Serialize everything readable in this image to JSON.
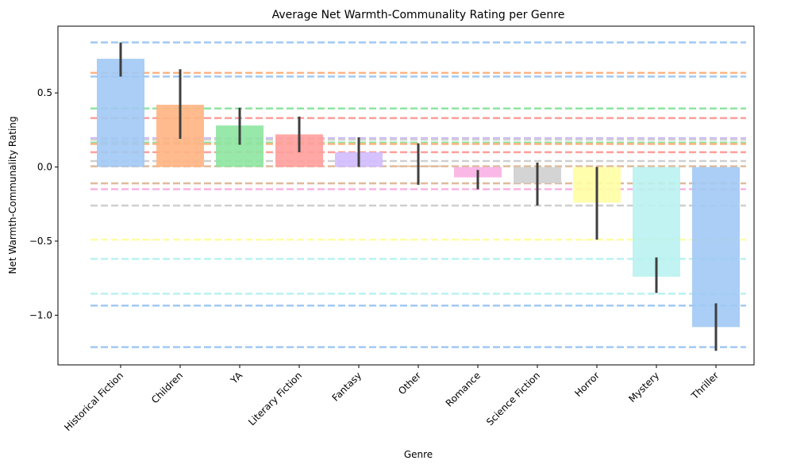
{
  "chart_data": {
    "type": "bar",
    "title": "Average Net Warmth-Communality Rating per Genre",
    "xlabel": "Genre",
    "ylabel": "Net Warmth-Communality Rating",
    "ylim": [
      -1.335,
      0.95
    ],
    "yticks": [
      0.5,
      0.0,
      -0.5,
      -1.0
    ],
    "ytick_labels": [
      "0.5",
      "0.0",
      "−0.5",
      "−1.0"
    ],
    "grid": false,
    "legend": "none",
    "categories": [
      "Historical Fiction",
      "Children",
      "YA",
      "Literary Fiction",
      "Fantasy",
      "Other",
      "Romance",
      "Science Fiction",
      "Horror",
      "Mystery",
      "Thriller"
    ],
    "values": [
      0.73,
      0.42,
      0.28,
      0.22,
      0.1,
      0.01,
      -0.07,
      -0.11,
      -0.24,
      -0.74,
      -1.08
    ],
    "error_low": [
      0.61,
      0.19,
      0.15,
      0.1,
      0.0,
      -0.12,
      -0.15,
      -0.26,
      -0.49,
      -0.85,
      -1.24
    ],
    "error_high": [
      0.84,
      0.66,
      0.4,
      0.34,
      0.2,
      0.16,
      -0.02,
      0.03,
      0.0,
      -0.61,
      -0.92
    ],
    "colors": [
      "#a1c9f4",
      "#ffb482",
      "#8de5a1",
      "#ff9f9b",
      "#d0bbff",
      "#debb9b",
      "#fab0e4",
      "#cfcfcf",
      "#fffea3",
      "#b9f2f0",
      "#a1c9f4"
    ],
    "reference_lines": [
      {
        "y": 0.84,
        "color": "#a1c9f4"
      },
      {
        "y": 0.635,
        "color": "#ffb482"
      },
      {
        "y": 0.61,
        "color": "#a1c9f4"
      },
      {
        "y": 0.395,
        "color": "#8de5a1"
      },
      {
        "y": 0.33,
        "color": "#ff9f9b"
      },
      {
        "y": 0.195,
        "color": "#d0bbff"
      },
      {
        "y": 0.185,
        "color": "#cfcfcf"
      },
      {
        "y": 0.165,
        "color": "#8de5a1"
      },
      {
        "y": 0.155,
        "color": "#ffb482"
      },
      {
        "y": 0.1,
        "color": "#ff9f9b"
      },
      {
        "y": 0.04,
        "color": "#cfcfcf"
      },
      {
        "y": 0.005,
        "color": "#debb9b"
      },
      {
        "y": -0.11,
        "color": "#debb9b"
      },
      {
        "y": -0.15,
        "color": "#fab0e4"
      },
      {
        "y": -0.26,
        "color": "#cfcfcf"
      },
      {
        "y": -0.49,
        "color": "#fffea3"
      },
      {
        "y": -0.62,
        "color": "#b9f2f0"
      },
      {
        "y": -0.855,
        "color": "#b9f2f0"
      },
      {
        "y": -0.935,
        "color": "#a1c9f4"
      },
      {
        "y": -1.215,
        "color": "#a1c9f4"
      }
    ]
  }
}
